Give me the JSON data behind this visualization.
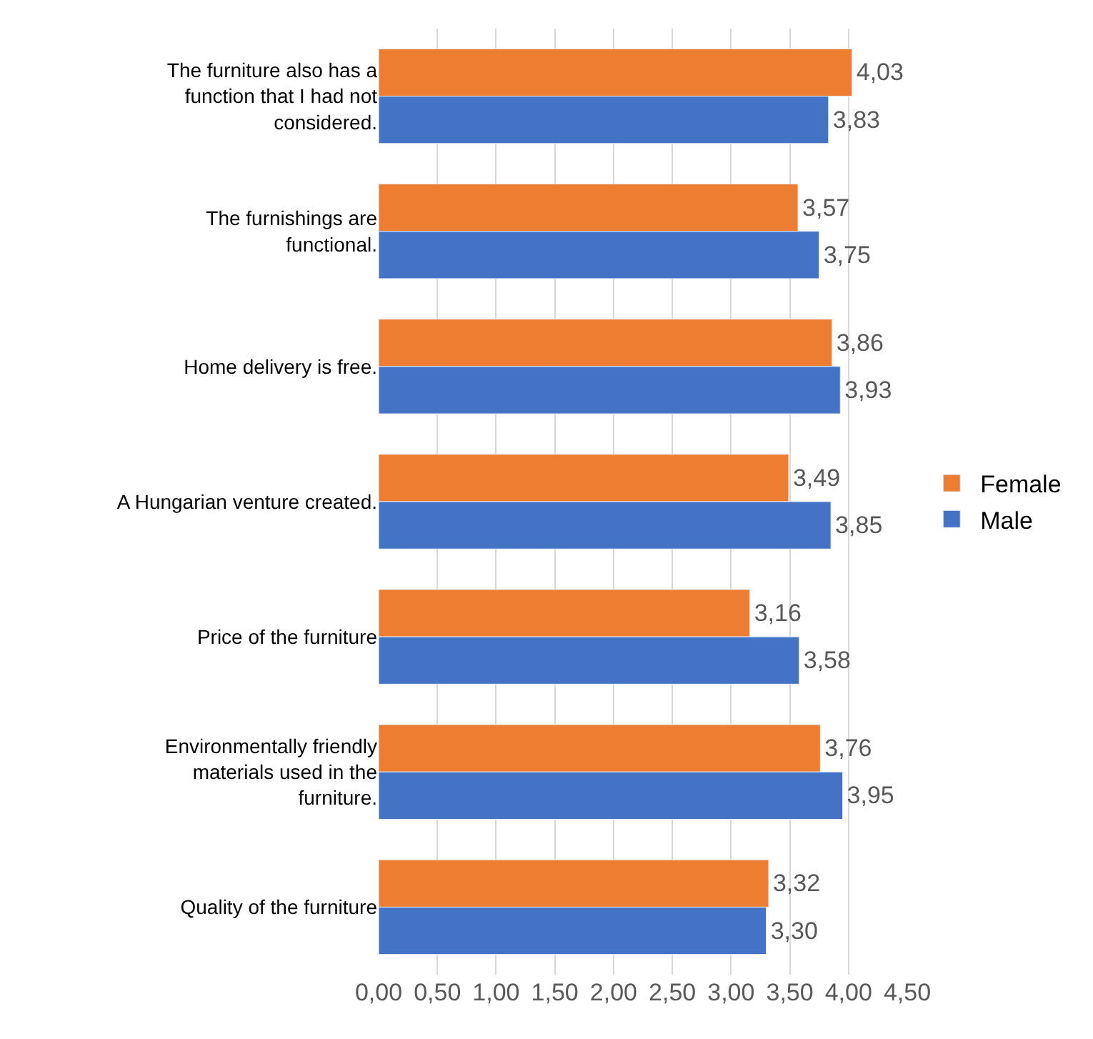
{
  "chart_data": {
    "type": "bar",
    "orientation": "horizontal",
    "categories": [
      "The furniture also has a function that I had not considered.",
      "The furnishings are functional.",
      "Home delivery is free.",
      "A Hungarian venture created.",
      "Price of the furniture",
      "Environmentally friendly materials used in the furniture.",
      "Quality of the furniture"
    ],
    "series": [
      {
        "name": "Female",
        "color": "#ed7d31",
        "values": [
          4.03,
          3.57,
          3.86,
          3.49,
          3.16,
          3.76,
          3.32
        ],
        "value_labels": [
          "4,03",
          "3,57",
          "3,86",
          "3,49",
          "3,16",
          "3,76",
          "3,32"
        ]
      },
      {
        "name": "Male",
        "color": "#4472c4",
        "values": [
          3.83,
          3.75,
          3.93,
          3.85,
          3.58,
          3.95,
          3.3
        ],
        "value_labels": [
          "3,83",
          "3,75",
          "3,93",
          "3,85",
          "3,58",
          "3,95",
          "3,30"
        ]
      }
    ],
    "xlim": [
      0,
      4.5
    ],
    "xticks": [
      {
        "value": 0,
        "label": "0,00"
      },
      {
        "value": 0.5,
        "label": "0,50"
      },
      {
        "value": 1,
        "label": "1,00"
      },
      {
        "value": 1.5,
        "label": "1,50"
      },
      {
        "value": 2,
        "label": "2,00"
      },
      {
        "value": 2.5,
        "label": "2,50"
      },
      {
        "value": 3,
        "label": "3,00"
      },
      {
        "value": 3.5,
        "label": "3,50"
      },
      {
        "value": 4,
        "label": "4,00"
      },
      {
        "value": 4.5,
        "label": "4,50"
      }
    ],
    "grid": "x",
    "legend": "right"
  }
}
